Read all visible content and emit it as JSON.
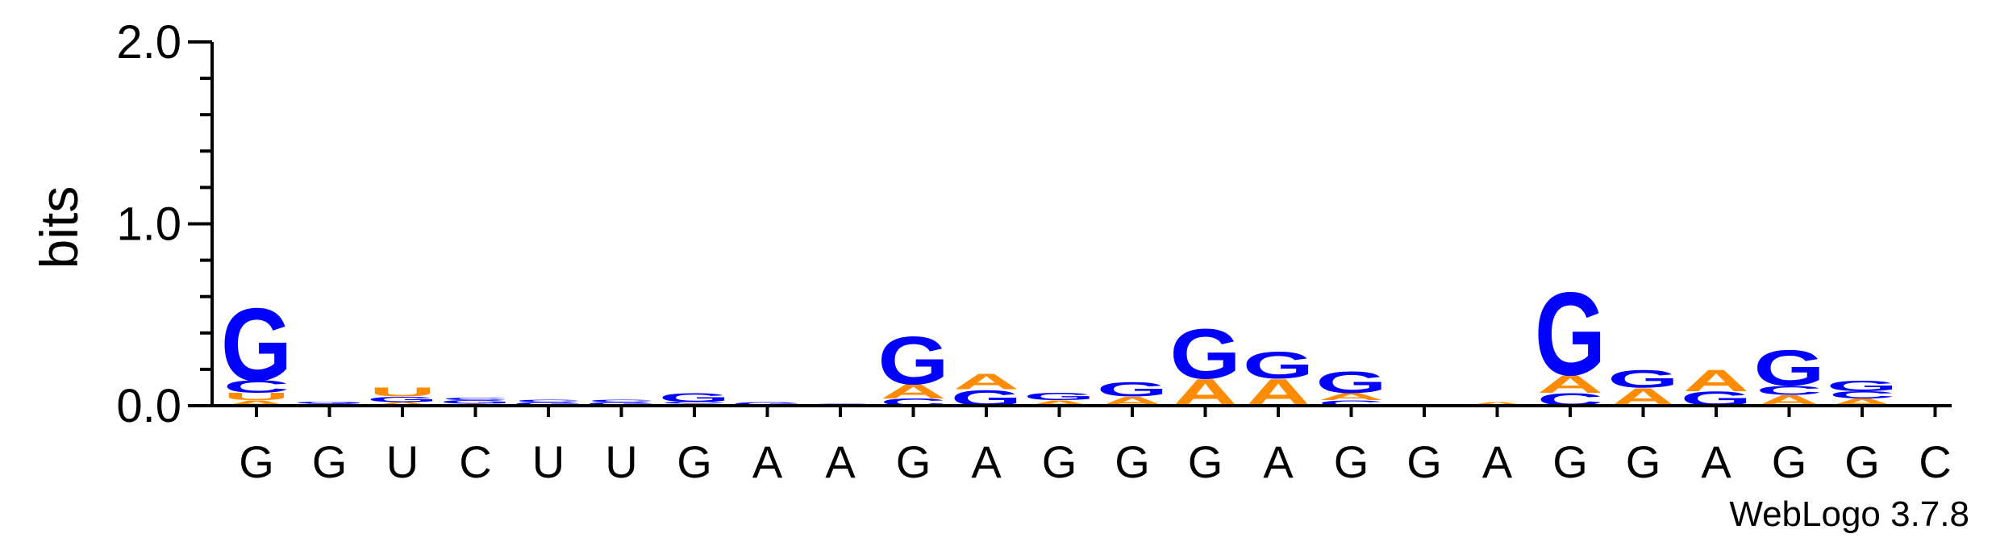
{
  "chart_data": {
    "type": "sequence-logo",
    "ylabel": "bits",
    "ylim": [
      0,
      2.0
    ],
    "yticks": [
      "0.0",
      "1.0",
      "2.0"
    ],
    "credit": "WebLogo 3.7.8",
    "colors": {
      "A": "#ff8c00",
      "G": "#0000ff",
      "C": "#0000ff",
      "U": "#ff8c00"
    },
    "positions": [
      {
        "label": "G",
        "stack": [
          {
            "letter": "A",
            "bits": 0.03
          },
          {
            "letter": "U",
            "bits": 0.04
          },
          {
            "letter": "C",
            "bits": 0.07
          },
          {
            "letter": "G",
            "bits": 0.41
          }
        ]
      },
      {
        "label": "G",
        "stack": [
          {
            "letter": "C",
            "bits": 0.01
          },
          {
            "letter": "G",
            "bits": 0.01
          }
        ]
      },
      {
        "label": "U",
        "stack": [
          {
            "letter": "A",
            "bits": 0.02
          },
          {
            "letter": "G",
            "bits": 0.03
          },
          {
            "letter": "U",
            "bits": 0.05
          }
        ]
      },
      {
        "label": "C",
        "stack": [
          {
            "letter": "A",
            "bits": 0.01
          },
          {
            "letter": "G",
            "bits": 0.02
          },
          {
            "letter": "C",
            "bits": 0.015
          }
        ]
      },
      {
        "label": "U",
        "stack": [
          {
            "letter": "G",
            "bits": 0.02
          },
          {
            "letter": "C",
            "bits": 0.015
          }
        ]
      },
      {
        "label": "U",
        "stack": [
          {
            "letter": "G",
            "bits": 0.02
          },
          {
            "letter": "C",
            "bits": 0.015
          }
        ]
      },
      {
        "label": "G",
        "stack": [
          {
            "letter": "A",
            "bits": 0.01
          },
          {
            "letter": "C",
            "bits": 0.01
          },
          {
            "letter": "G",
            "bits": 0.05
          }
        ]
      },
      {
        "label": "A",
        "stack": [
          {
            "letter": "G",
            "bits": 0.02
          }
        ]
      },
      {
        "label": "A",
        "stack": [
          {
            "letter": "C",
            "bits": 0.01
          }
        ]
      },
      {
        "label": "G",
        "stack": [
          {
            "letter": "C",
            "bits": 0.04
          },
          {
            "letter": "A",
            "bits": 0.08
          },
          {
            "letter": "G",
            "bits": 0.27
          }
        ]
      },
      {
        "label": "A",
        "stack": [
          {
            "letter": "G",
            "bits": 0.09
          },
          {
            "letter": "A",
            "bits": 0.09
          }
        ]
      },
      {
        "label": "G",
        "stack": [
          {
            "letter": "A",
            "bits": 0.03
          },
          {
            "letter": "G",
            "bits": 0.04
          }
        ]
      },
      {
        "label": "G",
        "stack": [
          {
            "letter": "A",
            "bits": 0.05
          },
          {
            "letter": "G",
            "bits": 0.08
          }
        ]
      },
      {
        "label": "G",
        "stack": [
          {
            "letter": "A",
            "bits": 0.15
          },
          {
            "letter": "G",
            "bits": 0.28
          }
        ]
      },
      {
        "label": "A",
        "stack": [
          {
            "letter": "A",
            "bits": 0.15
          },
          {
            "letter": "G",
            "bits": 0.15
          }
        ]
      },
      {
        "label": "G",
        "stack": [
          {
            "letter": "C",
            "bits": 0.03
          },
          {
            "letter": "A",
            "bits": 0.04
          },
          {
            "letter": "G",
            "bits": 0.12
          }
        ]
      },
      {
        "label": "G",
        "stack": []
      },
      {
        "label": "A",
        "stack": [
          {
            "letter": "A",
            "bits": 0.02
          }
        ]
      },
      {
        "label": "G",
        "stack": [
          {
            "letter": "C",
            "bits": 0.07
          },
          {
            "letter": "A",
            "bits": 0.1
          },
          {
            "letter": "G",
            "bits": 0.47
          }
        ]
      },
      {
        "label": "G",
        "stack": [
          {
            "letter": "A",
            "bits": 0.1
          },
          {
            "letter": "G",
            "bits": 0.1
          }
        ]
      },
      {
        "label": "A",
        "stack": [
          {
            "letter": "G",
            "bits": 0.08
          },
          {
            "letter": "A",
            "bits": 0.12
          }
        ]
      },
      {
        "label": "G",
        "stack": [
          {
            "letter": "A",
            "bits": 0.06
          },
          {
            "letter": "C",
            "bits": 0.05
          },
          {
            "letter": "G",
            "bits": 0.2
          }
        ]
      },
      {
        "label": "G",
        "stack": [
          {
            "letter": "A",
            "bits": 0.04
          },
          {
            "letter": "C",
            "bits": 0.04
          },
          {
            "letter": "G",
            "bits": 0.06
          }
        ]
      },
      {
        "label": "C",
        "stack": []
      }
    ]
  }
}
